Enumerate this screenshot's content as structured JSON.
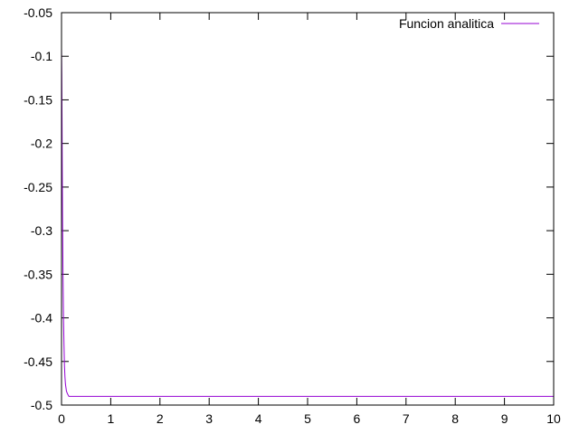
{
  "chart_data": {
    "type": "line",
    "title": "",
    "xlabel": "",
    "ylabel": "",
    "xlim": [
      0,
      10
    ],
    "ylim": [
      -0.5,
      -0.05
    ],
    "x_ticks": [
      "0",
      "1",
      "2",
      "3",
      "4",
      "5",
      "6",
      "7",
      "8",
      "9",
      "10"
    ],
    "y_ticks": [
      "-0.05",
      "-0.1",
      "-0.15",
      "-0.2",
      "-0.25",
      "-0.3",
      "-0.35",
      "-0.4",
      "-0.45",
      "-0.5"
    ],
    "grid": false,
    "legend_position": "top-right",
    "series": [
      {
        "name": "Funcion analitica",
        "color": "#9400d3",
        "x": [
          0,
          0.005,
          0.01,
          0.015,
          0.02,
          0.03,
          0.04,
          0.05,
          0.06,
          0.07,
          0.08,
          0.1,
          0.12,
          0.15,
          0.2,
          0.3,
          0.5,
          1,
          2,
          3,
          4,
          5,
          6,
          7,
          8,
          9,
          10
        ],
        "y": [
          -0.09,
          -0.12,
          -0.17,
          -0.23,
          -0.28,
          -0.35,
          -0.4,
          -0.43,
          -0.455,
          -0.468,
          -0.476,
          -0.484,
          -0.487,
          -0.49,
          -0.49,
          -0.49,
          -0.49,
          -0.49,
          -0.49,
          -0.49,
          -0.49,
          -0.49,
          -0.49,
          -0.49,
          -0.49,
          -0.49,
          -0.49
        ]
      }
    ]
  }
}
